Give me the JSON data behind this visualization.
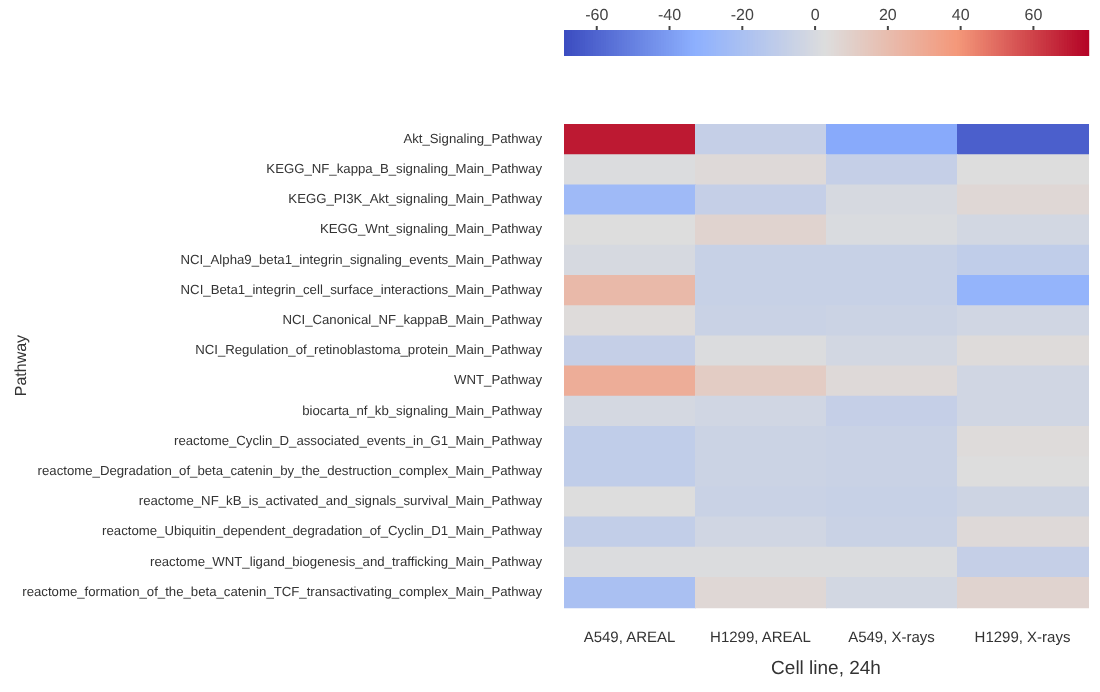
{
  "chart_data": {
    "type": "heatmap",
    "xlabel": "Cell line, 24h",
    "ylabel": "Pathway",
    "categories": [
      "A549, AREAL",
      "H1299, AREAL",
      "A549, X-rays",
      "H1299, X-rays"
    ],
    "y_categories": [
      "Akt_Signaling_Pathway",
      "KEGG_NF_kappa_B_signaling_Main_Pathway",
      "KEGG_PI3K_Akt_signaling_Main_Pathway",
      "KEGG_Wnt_signaling_Main_Pathway",
      "NCI_Alpha9_beta1_integrin_signaling_events_Main_Pathway",
      "NCI_Beta1_integrin_cell_surface_interactions_Main_Pathway",
      "NCI_Canonical_NF_kappaB_Main_Pathway",
      "NCI_Regulation_of_retinoblastoma_protein_Main_Pathway",
      "WNT_Pathway",
      "biocarta_nf_kb_signaling_Main_Pathway",
      "reactome_Cyclin_D_associated_events_in_G1_Main_Pathway",
      "reactome_Degradation_of_beta_catenin_by_the_destruction_complex_Main_Pathway",
      "reactome_NF_kB_is_activated_and_signals_survival_Main_Pathway",
      "reactome_Ubiquitin_dependent_degradation_of_Cyclin_D1_Main_Pathway",
      "reactome_WNT_ligand_biogenesis_and_trafficking_Main_Pathway",
      "reactome_formation_of_the_beta_catenin_TCF_transactivating_complex_Main_Pathway"
    ],
    "cells": [
      [
        70,
        -8,
        -35,
        -62
      ],
      [
        2,
        5,
        -8,
        3
      ],
      [
        -25,
        -8,
        0,
        6
      ],
      [
        3,
        8,
        1,
        -2
      ],
      [
        0,
        -7,
        -7,
        -10
      ],
      [
        22,
        -7,
        -7,
        -30
      ],
      [
        4,
        -6,
        -5,
        -3
      ],
      [
        -8,
        2,
        -2,
        4
      ],
      [
        28,
        12,
        5,
        -3
      ],
      [
        -1,
        -3,
        -8,
        -3
      ],
      [
        -10,
        -5,
        -6,
        4
      ],
      [
        -10,
        -5,
        -6,
        3
      ],
      [
        3,
        -6,
        -7,
        -4
      ],
      [
        -9,
        -3,
        -6,
        5
      ],
      [
        2,
        2,
        2,
        -8
      ],
      [
        -20,
        6,
        -2,
        8
      ]
    ],
    "clim": [
      -69,
      75
    ],
    "cticks": [
      -60,
      -40,
      -20,
      0,
      20,
      40,
      60
    ]
  }
}
